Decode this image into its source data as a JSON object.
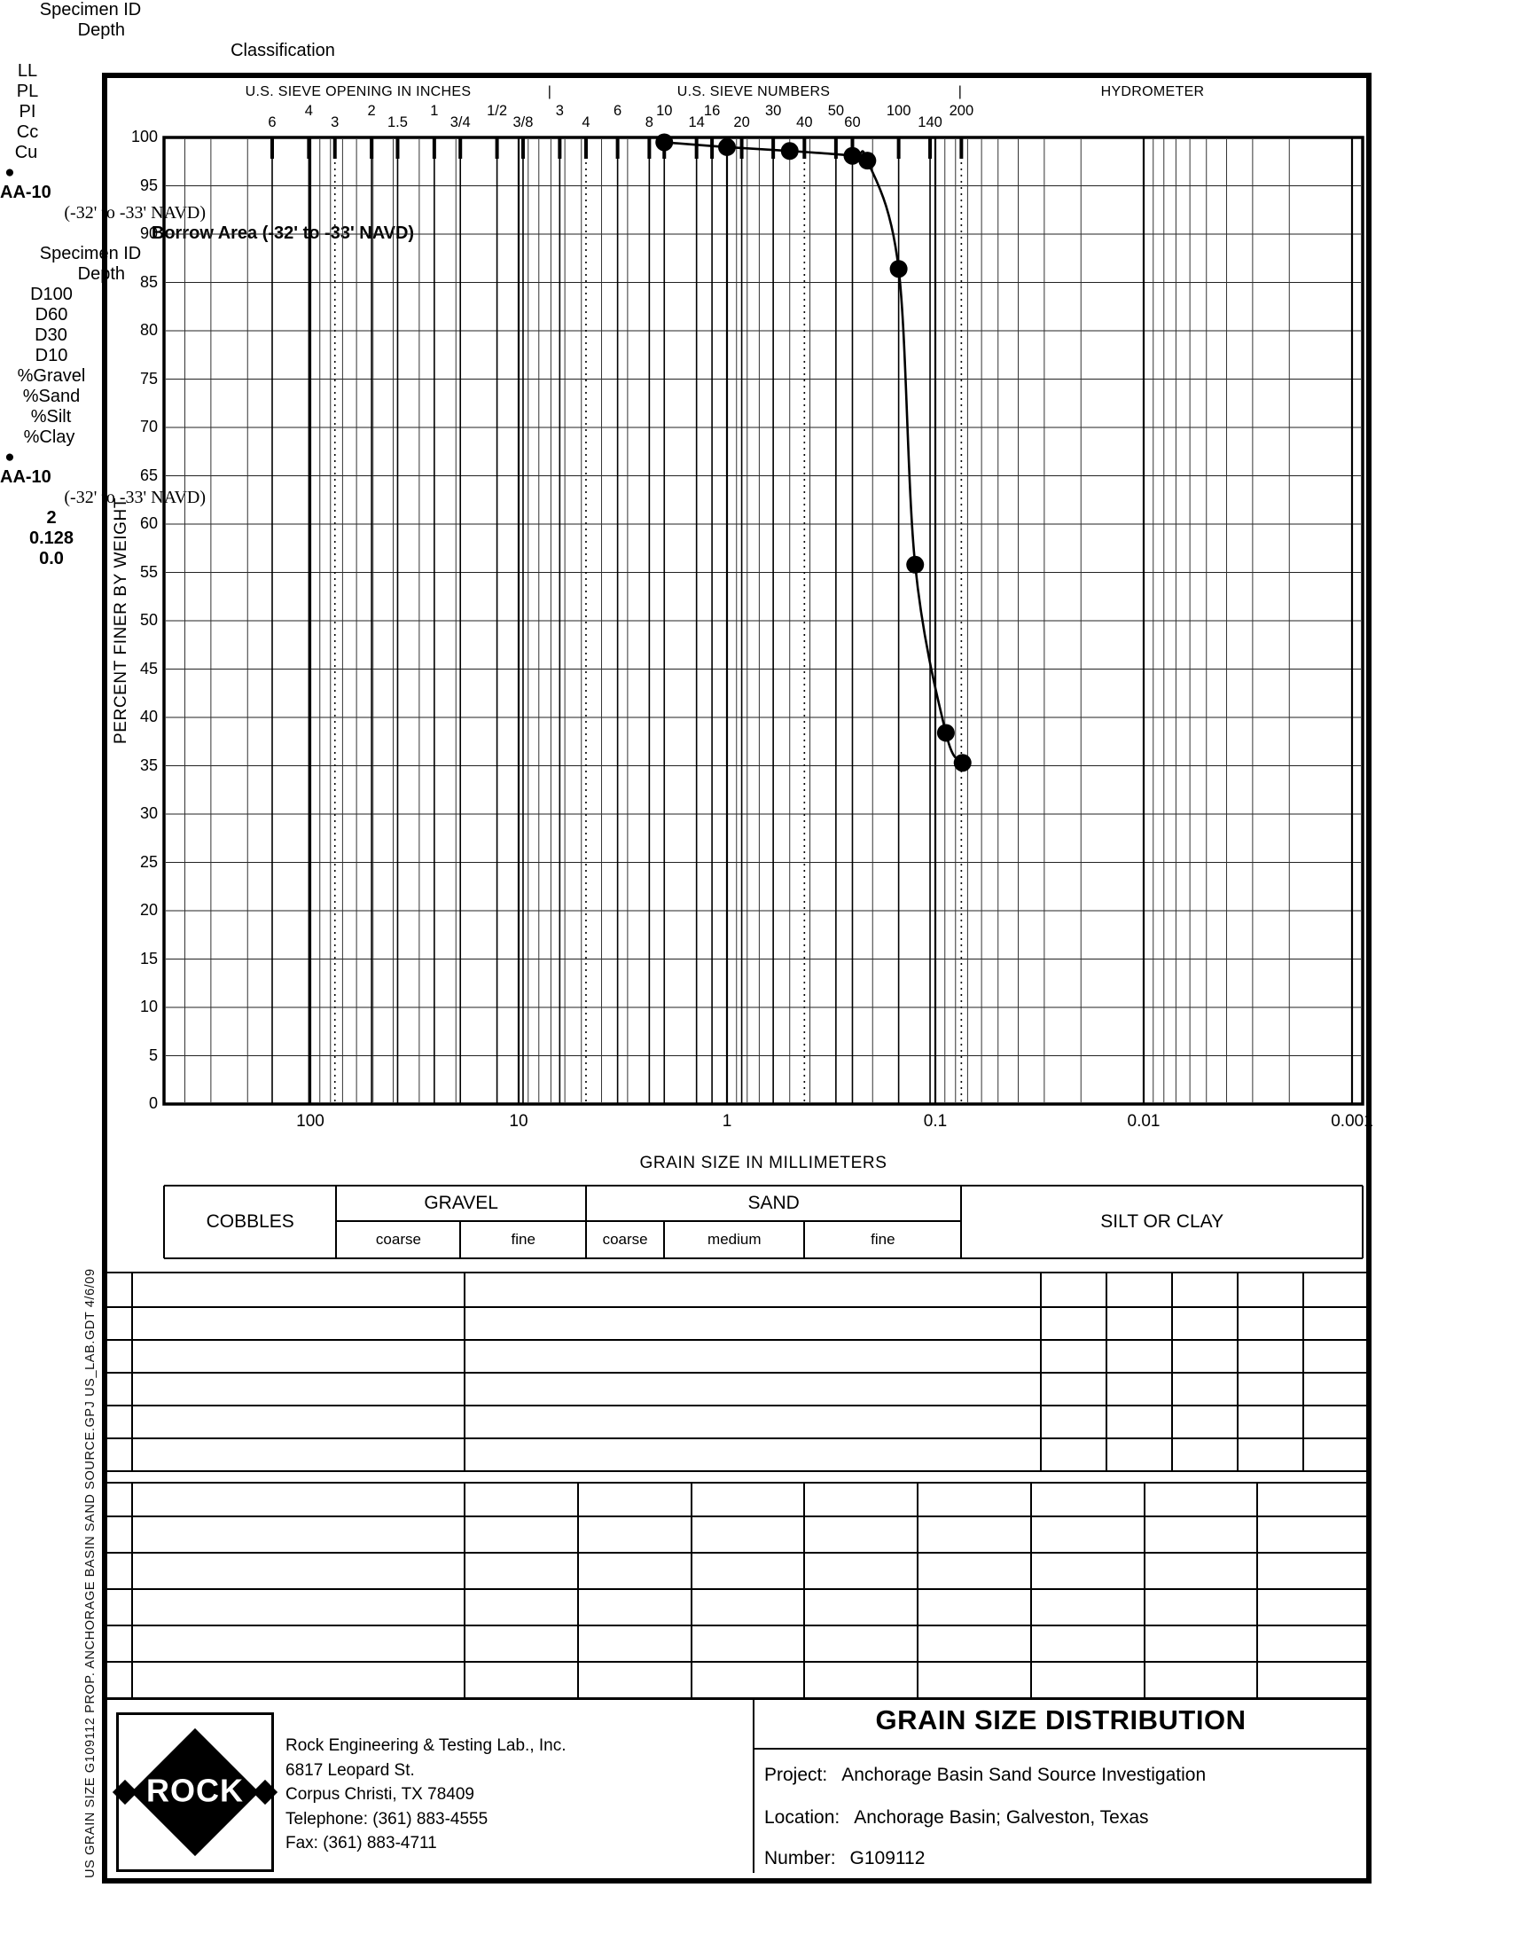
{
  "document": {
    "sidebar_note": "US GRAIN SIZE  G109112 PROP. ANCHORAGE BASIN SAND SOURCE.GPJ  US_LAB.GDT  4/6/09",
    "scale_headers": {
      "inches": "U.S. SIEVE OPENING IN INCHES",
      "separator": "|",
      "numbers": "U.S. SIEVE NUMBERS",
      "hydrometer": "HYDROMETER"
    }
  },
  "chart_data": {
    "type": "line",
    "title": "GRAIN SIZE DISTRIBUTION",
    "xlabel": "GRAIN SIZE IN MILLIMETERS",
    "ylabel": "PERCENT FINER BY WEIGHT",
    "x_scale": "log",
    "xlim_mm": [
      500,
      0.00085
    ],
    "ylim_pct": [
      0,
      100
    ],
    "y_tick_step": 5,
    "grid": "on",
    "x_decade_labels": [
      "100",
      "10",
      "1",
      "0.1",
      "0.01",
      "0.001"
    ],
    "x_decade_mm": [
      100,
      10,
      1,
      0.1,
      0.01,
      0.001
    ],
    "sieve_ticks_inches": [
      {
        "label": "6",
        "mm": 152.4
      },
      {
        "label": "4",
        "mm": 101.6
      },
      {
        "label": "3",
        "mm": 76.2,
        "dotted": true
      },
      {
        "label": "2",
        "mm": 50.8
      },
      {
        "label": "1.5",
        "mm": 38.1
      },
      {
        "label": "1",
        "mm": 25.4
      },
      {
        "label": "3/4",
        "mm": 19.05
      },
      {
        "label": "1/2",
        "mm": 12.7
      },
      {
        "label": "3/8",
        "mm": 9.525
      }
    ],
    "sieve_ticks_numbers": [
      {
        "label": "3",
        "mm": 6.35
      },
      {
        "label": "4",
        "mm": 4.75,
        "dotted": true
      },
      {
        "label": "6",
        "mm": 3.35
      },
      {
        "label": "8",
        "mm": 2.36
      },
      {
        "label": "10",
        "mm": 2.0
      },
      {
        "label": "14",
        "mm": 1.4
      },
      {
        "label": "16",
        "mm": 1.18
      },
      {
        "label": "20",
        "mm": 0.85
      },
      {
        "label": "30",
        "mm": 0.6
      },
      {
        "label": "40",
        "mm": 0.425,
        "dotted": true
      },
      {
        "label": "50",
        "mm": 0.3
      },
      {
        "label": "60",
        "mm": 0.25
      },
      {
        "label": "100",
        "mm": 0.15
      },
      {
        "label": "140",
        "mm": 0.106
      },
      {
        "label": "200",
        "mm": 0.075,
        "dotted": true
      }
    ],
    "series": [
      {
        "name": "AA-10 (-32' to -33' NAVD)",
        "marker": "filled-circle",
        "points": [
          {
            "mm": 2.0,
            "pct": 99.5
          },
          {
            "mm": 1.0,
            "pct": 99.0
          },
          {
            "mm": 0.5,
            "pct": 98.6
          },
          {
            "mm": 0.25,
            "pct": 98.1
          },
          {
            "mm": 0.212,
            "pct": 97.6
          },
          {
            "mm": 0.15,
            "pct": 86.4
          },
          {
            "mm": 0.125,
            "pct": 55.8
          },
          {
            "mm": 0.089,
            "pct": 38.4
          },
          {
            "mm": 0.074,
            "pct": 35.3
          }
        ]
      }
    ]
  },
  "fraction_bar": {
    "groups": [
      {
        "label": "COBBLES",
        "subs": []
      },
      {
        "label": "GRAVEL",
        "subs": [
          "coarse",
          "fine"
        ]
      },
      {
        "label": "SAND",
        "subs": [
          "coarse",
          "medium",
          "fine"
        ]
      },
      {
        "label": "SILT OR CLAY",
        "subs": []
      }
    ],
    "boundaries_mm": [
      75,
      19,
      4.75,
      2,
      0.425,
      0.075
    ]
  },
  "table1": {
    "headers": [
      "Specimen ID",
      "Depth",
      "Classification",
      "LL",
      "PL",
      "PI",
      "Cc",
      "Cu"
    ],
    "rows": [
      {
        "marker": "●",
        "specimen_id": "AA-10",
        "depth": "(-32' to -33' NAVD)",
        "classification": "Borrow Area (-32' to -33' NAVD)",
        "ll": "",
        "pl": "",
        "pi": "",
        "cc": "",
        "cu": ""
      }
    ],
    "empty_row_count": 4
  },
  "table2": {
    "headers": [
      "Specimen ID",
      "Depth",
      "D100",
      "D60",
      "D30",
      "D10",
      "%Gravel",
      "%Sand",
      "%Silt",
      "%Clay"
    ],
    "rows": [
      {
        "marker": "●",
        "specimen_id": "AA-10",
        "depth": "(-32' to -33' NAVD)",
        "d100": "2",
        "d60": "0.128",
        "d30": "",
        "d10": "",
        "gravel": "0.0",
        "sand": "",
        "silt": "",
        "clay": ""
      }
    ],
    "empty_row_count": 4
  },
  "footer": {
    "logo_text": "ROCK",
    "company": [
      "Rock Engineering & Testing Lab., Inc.",
      "6817 Leopard St.",
      "Corpus Christi, TX 78409",
      "Telephone:  (361) 883-4555",
      "Fax:  (361) 883-4711"
    ],
    "title": "GRAIN SIZE DISTRIBUTION",
    "project_label": "Project:",
    "project": "Anchorage Basin Sand Source Investigation",
    "location_label": "Location:",
    "location": "Anchorage Basin; Galveston, Texas",
    "number_label": "Number:",
    "number": "G109112"
  }
}
